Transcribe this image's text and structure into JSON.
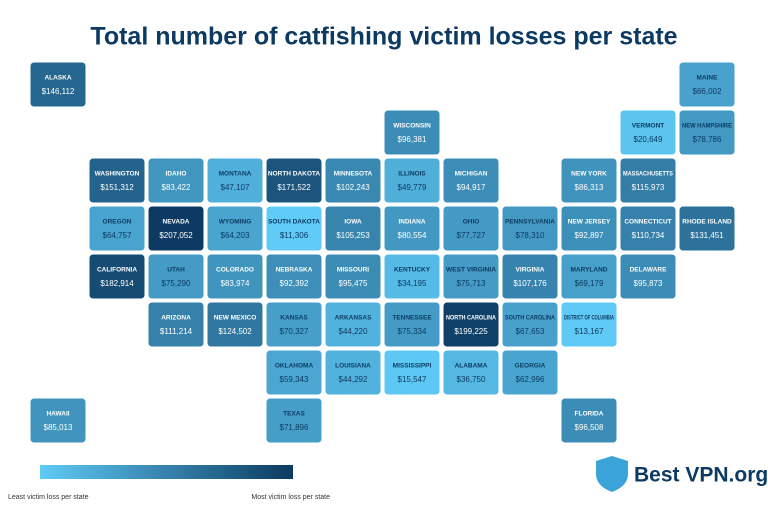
{
  "chart_data": {
    "type": "choropleth",
    "title": "Total number of catfishing victim losses per state",
    "categories": [
      "WASHINGTON",
      "OREGON",
      "CALIFORNIA",
      "NEVADA",
      "IDAHO",
      "MONTANA",
      "WYOMING",
      "UTAH",
      "ARIZONA",
      "COLORADO",
      "NEW MEXICO",
      "ALASKA",
      "HAWAII",
      "NORTH DAKOTA",
      "SOUTH DAKOTA",
      "NEBRASKA",
      "KANSAS",
      "OKLAHOMA",
      "TEXAS",
      "MINNESOTA",
      "IOWA",
      "MISSOURI",
      "ARKANSAS",
      "LOUISIANA",
      "WISCONSIN",
      "ILLINOIS",
      "MICHIGAN",
      "INDIANA",
      "OHIO",
      "KENTUCKY",
      "TENNESSEE",
      "MISSISSIPPI",
      "ALABAMA",
      "GEORGIA",
      "FLORIDA",
      "SOUTH CAROLINA",
      "NORTH CAROLINA",
      "VIRGINIA",
      "WEST VIRGINIA",
      "MARYLAND",
      "DELAWARE",
      "DISTRICT OF COLUMBIA",
      "PENNSYLVANIA",
      "NEW JERSEY",
      "NEW YORK",
      "CONNECTICUT",
      "RHODE ISLAND",
      "MASSACHUSETTS",
      "VERMONT",
      "NEW HAMPSHIRE",
      "MAINE"
    ],
    "values": [
      151312,
      64757,
      182914,
      207052,
      83422,
      47107,
      64203,
      75290,
      111214,
      83974,
      124502,
      146112,
      85013,
      171522,
      11306,
      92392,
      70327,
      59343,
      71896,
      102243,
      105253,
      95475,
      44220,
      44292,
      96381,
      49779,
      94917,
      80554,
      77727,
      34195,
      75334,
      15547,
      36750,
      62996,
      96508,
      67653,
      199225,
      107176,
      75713,
      69179,
      95873,
      13167,
      78310,
      92897,
      86313,
      110734,
      131451,
      115973,
      20649,
      78786,
      66002
    ],
    "value_labels": [
      "$151,312",
      "$64,757",
      "$182,914",
      "$207,052",
      "$83,422",
      "$47,107",
      "$64,203",
      "$75,290",
      "$111,214",
      "$83,974",
      "$124,502",
      "$146,112",
      "$85,013",
      "$171,522",
      "$11,306",
      "$92,392",
      "$70,327",
      "$59,343",
      "$71,896",
      "$102,243",
      "$105,253",
      "$95,475",
      "$44,220",
      "$44,292",
      "$96,381",
      "$49,779",
      "$94,917",
      "$80,554",
      "$77,727",
      "$34,195",
      "$75,334",
      "$15,547",
      "$36,750",
      "$62,996",
      "$96,508",
      "$67,653",
      "$199,225",
      "$107,176",
      "$75,713",
      "$69,179",
      "$95,873",
      "$13,167",
      "$78,310",
      "$92,897",
      "$86,313",
      "$110,734",
      "$131,451",
      "$115,973",
      "$20,649",
      "$78,786",
      "$66,002"
    ],
    "color_scale": [
      "#5fcbf6",
      "#0c3a62"
    ],
    "legend": {
      "low_label": "Least victim loss per state",
      "high_label": "Most victim loss per state"
    }
  },
  "logo": "Best VPN.org"
}
